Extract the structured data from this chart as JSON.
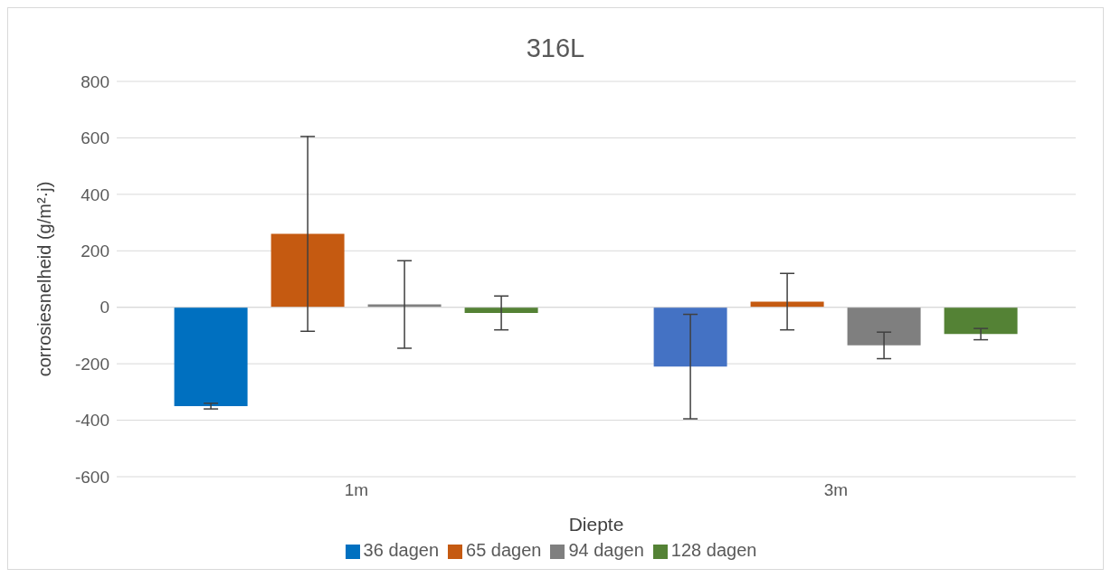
{
  "chart_data": {
    "type": "bar",
    "title": "316L",
    "xlabel": "Diepte",
    "ylabel": "corrosiesnelheid (g/m²·j)",
    "categories": [
      "1m",
      "3m"
    ],
    "series": [
      {
        "name": "36 dagen",
        "color": "#0070c0",
        "colors": [
          "#0070c0",
          "#4472c4"
        ],
        "values": [
          -350,
          -210
        ],
        "errors": [
          10,
          185
        ]
      },
      {
        "name": "65 dagen",
        "color": "#c55a11",
        "values": [
          260,
          20
        ],
        "errors": [
          345,
          100
        ]
      },
      {
        "name": "94 dagen",
        "color": "#7f7f7f",
        "values": [
          10,
          -135
        ],
        "errors": [
          155,
          47
        ]
      },
      {
        "name": "128 dagen",
        "color": "#548235",
        "values": [
          -20,
          -95
        ],
        "errors": [
          60,
          20
        ]
      }
    ],
    "ylim": [
      -600,
      800
    ],
    "yticks": [
      -600,
      -400,
      -200,
      0,
      200,
      400,
      600,
      800
    ],
    "grid": "y",
    "legend": "bottom"
  }
}
